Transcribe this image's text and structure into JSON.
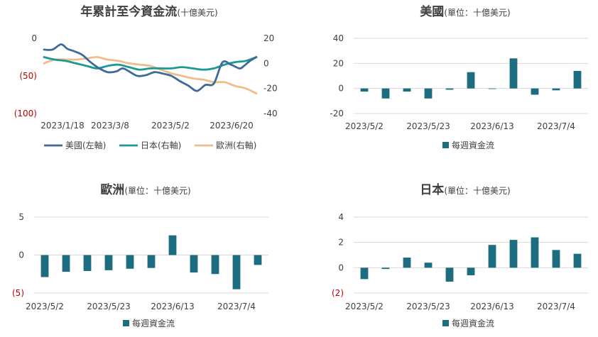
{
  "colors": {
    "us": "#3E6A9A",
    "jp": "#1A9A92",
    "eu": "#EDBE8C",
    "bar": "#1C6D80",
    "neg": "#C00000",
    "axis": "#404040",
    "grid": "#D9D9D9"
  },
  "chart_data": [
    {
      "id": "cumulative",
      "type": "line",
      "title": "年累計至今資金流",
      "subtitle": "(十億美元)",
      "x_ticks": [
        "2023/1/18",
        "2023/3/8",
        "2023/5/2",
        "2023/6/20"
      ],
      "y_left": {
        "ticks": [
          "0",
          "(50)",
          "(100)"
        ],
        "ylim": [
          -100,
          0
        ]
      },
      "y_right": {
        "ticks": [
          "20",
          "0",
          "-20",
          "-40"
        ],
        "ylim": [
          -40,
          20
        ]
      },
      "x_range": [
        0,
        100
      ],
      "series": [
        {
          "name": "美國(左軸)",
          "axis": "left",
          "color_key": "us",
          "x": [
            0,
            4,
            8,
            11,
            14,
            18,
            22,
            26,
            30,
            34,
            37,
            40,
            44,
            48,
            52,
            56,
            60,
            64,
            68,
            72,
            76,
            80,
            84,
            88,
            92,
            94,
            97,
            100
          ],
          "y": [
            -15,
            -15,
            -8,
            -14,
            -17,
            -22,
            -32,
            -40,
            -45,
            -44,
            -40,
            -44,
            -50,
            -49,
            -45,
            -47,
            -50,
            -57,
            -63,
            -70,
            -62,
            -60,
            -32,
            -35,
            -40,
            -37,
            -30,
            -25
          ]
        },
        {
          "name": "日本(右軸)",
          "axis": "right",
          "color_key": "jp",
          "x": [
            0,
            5,
            10,
            15,
            20,
            25,
            30,
            35,
            40,
            45,
            50,
            55,
            60,
            65,
            70,
            75,
            80,
            85,
            90,
            95,
            100
          ],
          "y": [
            5,
            3,
            2,
            0,
            -2,
            -4,
            -2,
            -1,
            -3,
            -5,
            -4,
            -4,
            -4,
            -3,
            -4,
            -5,
            -4,
            -1,
            1,
            2,
            5
          ]
        },
        {
          "name": "歐洲(右軸)",
          "axis": "right",
          "color_key": "eu",
          "x": [
            0,
            5,
            10,
            15,
            20,
            25,
            30,
            35,
            40,
            45,
            50,
            55,
            60,
            65,
            70,
            75,
            80,
            85,
            90,
            95,
            100
          ],
          "y": [
            0,
            3,
            3,
            3,
            4,
            5,
            3,
            2,
            0,
            -1,
            -2,
            -5,
            -8,
            -10,
            -12,
            -13,
            -15,
            -15,
            -18,
            -20,
            -24
          ]
        }
      ]
    },
    {
      "id": "us",
      "type": "bar",
      "title": "美國",
      "subtitle": "(單位：十億美元)",
      "x_ticks": [
        "2023/5/2",
        "2023/5/23",
        "2023/6/13",
        "2023/7/4"
      ],
      "y_ticks": [
        "40",
        "20",
        "0",
        "-20"
      ],
      "ylim": [
        -20,
        40
      ],
      "values": [
        -2.5,
        -8,
        -2.5,
        -8,
        -1,
        13,
        0,
        24,
        -5,
        -1.5,
        14
      ],
      "legend": "每週資金流"
    },
    {
      "id": "eu",
      "type": "bar",
      "title": "歐洲",
      "subtitle": "(單位：十億美元)",
      "x_ticks": [
        "2023/5/2",
        "2023/5/23",
        "2023/6/13",
        "2023/7/4"
      ],
      "y_ticks": [
        "5",
        "0",
        "(5)"
      ],
      "ylim": [
        -5,
        5
      ],
      "values": [
        -2.9,
        -2.2,
        -2.1,
        -2.0,
        -1.8,
        -1.7,
        2.6,
        -2.3,
        -2.5,
        -4.5,
        -1.3
      ],
      "legend": "每週資金流"
    },
    {
      "id": "jp",
      "type": "bar",
      "title": "日本",
      "subtitle": "(單位：十億美元)",
      "x_ticks": [
        "2023/5/2",
        "2023/5/23",
        "2023/6/13",
        "2023/7/4"
      ],
      "y_ticks": [
        "4",
        "2",
        "0",
        "(2)"
      ],
      "ylim": [
        -2,
        4
      ],
      "values": [
        -0.9,
        -0.1,
        0.8,
        0.4,
        -1.1,
        -0.6,
        1.8,
        2.2,
        2.4,
        1.4,
        1.1
      ],
      "legend": "每週資金流"
    }
  ]
}
